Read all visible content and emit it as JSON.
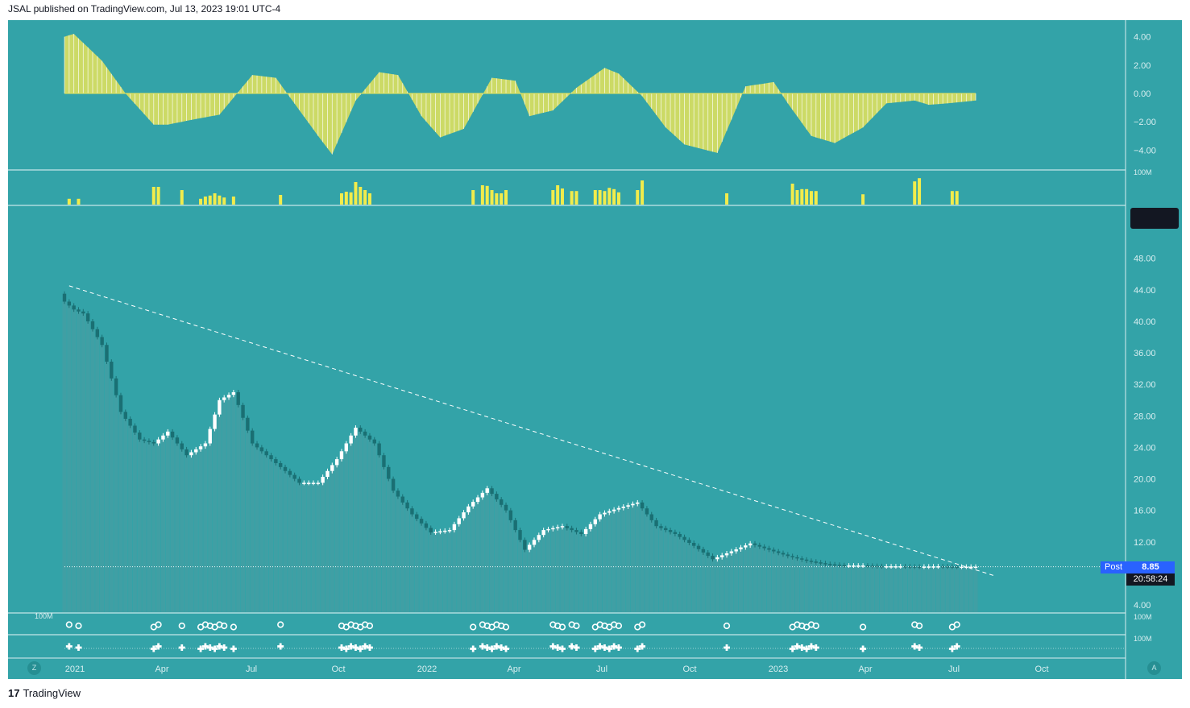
{
  "header": {
    "credit": "JSAL published on TradingView.com, Jul 13, 2023 19:01 UTC-4"
  },
  "footer": {
    "brand_logo": "17",
    "brand": "TradingView"
  },
  "buttons": {
    "left": "Z",
    "right": "A"
  },
  "price_badge": {
    "label": "Post",
    "price": "8.85",
    "countdown": "20:58:24"
  },
  "colors": {
    "background": "#33a3a8",
    "up_candle": "#ffffff",
    "down_candle": "#1a6f73",
    "histogram": "#e8e45a",
    "volume": "#f2ec4b"
  },
  "chart_data": [
    {
      "type": "bar",
      "panel": "oscillator-histogram",
      "ylim": [
        -5,
        5
      ],
      "y_ticks": [
        "4.00",
        "2.00",
        "0.00",
        "−2.00",
        "−4.00"
      ],
      "y_tick_values": [
        4,
        2,
        0,
        -2,
        -4
      ],
      "keyframes_index": [
        0,
        2,
        8,
        13,
        19,
        22,
        28,
        33,
        40,
        45,
        54,
        57,
        62,
        67,
        71,
        76,
        80,
        85,
        91,
        96,
        99,
        104,
        109,
        115,
        118,
        123,
        128,
        132,
        139,
        145,
        151,
        154,
        159,
        164,
        170,
        175,
        181,
        184,
        188,
        194
      ],
      "keyframes_value": [
        4.0,
        4.2,
        2.3,
        0.0,
        -2.2,
        -2.2,
        -1.8,
        -1.5,
        1.3,
        1.1,
        -3.0,
        -4.3,
        -0.5,
        1.5,
        1.3,
        -1.6,
        -3.1,
        -2.5,
        1.1,
        0.9,
        -1.6,
        -1.2,
        0.4,
        1.8,
        1.4,
        -0.2,
        -2.4,
        -3.6,
        -4.2,
        0.5,
        0.8,
        -0.7,
        -3.0,
        -3.5,
        -2.4,
        -0.7,
        -0.5,
        -0.8,
        -0.7,
        -0.5
      ]
    },
    {
      "type": "bar",
      "panel": "volume",
      "axis_label": "100M",
      "bars_index": [
        1,
        3,
        19,
        20,
        25,
        29,
        30,
        31,
        32,
        33,
        34,
        36,
        46,
        59,
        60,
        61,
        62,
        63,
        64,
        65,
        87,
        89,
        90,
        91,
        92,
        93,
        94,
        104,
        105,
        106,
        108,
        109,
        113,
        114,
        115,
        116,
        117,
        118,
        122,
        123,
        141,
        155,
        156,
        157,
        158,
        159,
        160,
        170,
        181,
        182,
        189,
        190
      ],
      "bars_value": [
        18,
        18,
        55,
        55,
        45,
        18,
        25,
        28,
        35,
        28,
        22,
        25,
        30,
        35,
        40,
        38,
        70,
        55,
        45,
        35,
        45,
        60,
        58,
        45,
        35,
        35,
        45,
        45,
        60,
        50,
        42,
        42,
        45,
        45,
        42,
        52,
        48,
        38,
        45,
        75,
        35,
        65,
        45,
        48,
        48,
        42,
        42,
        32,
        72,
        82,
        42,
        42
      ]
    },
    {
      "type": "candlestick",
      "panel": "price",
      "ylim": [
        2,
        54
      ],
      "y_ticks": [
        "48.00",
        "44.00",
        "40.00",
        "36.00",
        "32.00",
        "28.00",
        "24.00",
        "20.00",
        "16.00",
        "12.00",
        "4.00"
      ],
      "y_tick_values": [
        48,
        44,
        40,
        36,
        32,
        28,
        24,
        20,
        16,
        12,
        4
      ],
      "x_ticks": [
        "2021",
        "Apr",
        "Jul",
        "Oct",
        "2022",
        "Apr",
        "Jul",
        "Oct",
        "2023",
        "Apr",
        "Jul",
        "Oct"
      ],
      "last_price": 8.85,
      "close_keyframes_index": [
        0,
        2,
        4,
        8,
        12,
        16,
        19,
        22,
        26,
        30,
        33,
        36,
        40,
        46,
        50,
        54,
        58,
        62,
        66,
        70,
        74,
        78,
        82,
        86,
        90,
        94,
        98,
        102,
        106,
        110,
        114,
        118,
        122,
        126,
        130,
        134,
        138,
        142,
        146,
        150,
        154,
        158,
        162,
        166,
        170,
        174,
        178,
        182,
        186,
        190,
        194
      ],
      "close_keyframes_value": [
        42.5,
        41.5,
        41.0,
        37.0,
        28.5,
        25.0,
        24.5,
        26.0,
        23.0,
        24.5,
        30.0,
        31.0,
        24.5,
        21.5,
        19.5,
        19.5,
        22.5,
        26.5,
        24.5,
        18.5,
        15.5,
        13.2,
        13.5,
        16.5,
        18.8,
        16.0,
        11.0,
        13.5,
        14.0,
        13.0,
        15.5,
        16.3,
        17.0,
        14.0,
        13.0,
        11.5,
        9.8,
        10.8,
        11.8,
        11.0,
        10.2,
        9.6,
        9.2,
        9.0,
        9.0,
        8.9,
        8.9,
        8.85,
        8.9,
        8.85,
        8.85
      ],
      "trendline": {
        "from_index": 1,
        "from_price": 44.5,
        "to_index": 198,
        "to_price": 7.7
      },
      "markers_circles_index": [
        1,
        3,
        19,
        20,
        25,
        29,
        30,
        31,
        32,
        33,
        34,
        36,
        46,
        59,
        60,
        61,
        62,
        63,
        64,
        65,
        87,
        89,
        90,
        91,
        92,
        93,
        94,
        104,
        105,
        106,
        108,
        109,
        113,
        114,
        115,
        116,
        117,
        118,
        122,
        123,
        141,
        155,
        156,
        157,
        158,
        159,
        160,
        170,
        181,
        182,
        189,
        190
      ],
      "markers_small_axis_label": "100M"
    }
  ]
}
